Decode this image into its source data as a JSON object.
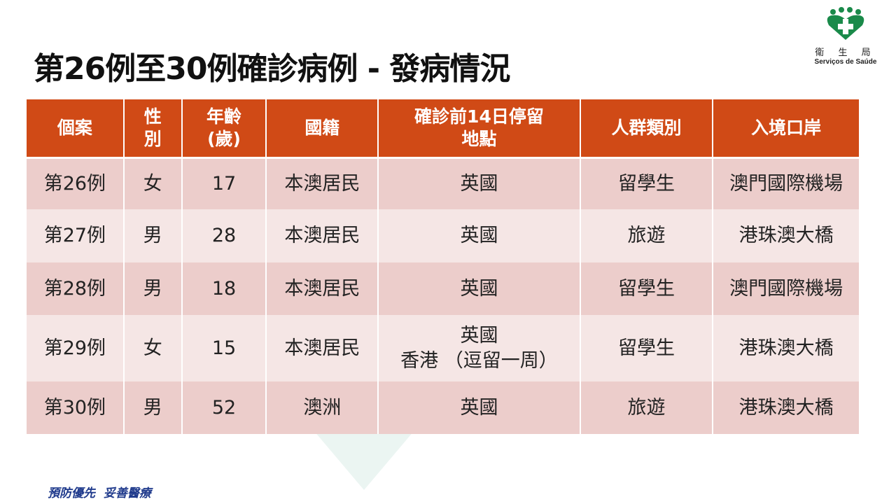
{
  "title": "第26例至30例確診病例 - 發病情況",
  "logo": {
    "name_cn": "衛 生 局",
    "name_pt": "Serviços de Saúde"
  },
  "table": {
    "headers": [
      "個案",
      "性\n別",
      "年齡\n(歲)",
      "國籍",
      "確診前14日停留\n地點",
      "人群類別",
      "入境口岸"
    ],
    "rows": [
      [
        "第26例",
        "女",
        "17",
        "本澳居民",
        "英國",
        "留學生",
        "澳門國際機場"
      ],
      [
        "第27例",
        "男",
        "28",
        "本澳居民",
        "英國",
        "旅遊",
        "港珠澳大橋"
      ],
      [
        "第28例",
        "男",
        "18",
        "本澳居民",
        "英國",
        "留學生",
        "澳門國際機場"
      ],
      [
        "第29例",
        "女",
        "15",
        "本澳居民",
        "英國\n香港 （逗留一周）",
        "留學生",
        "港珠澳大橋"
      ],
      [
        "第30例",
        "男",
        "52",
        "澳洲",
        "英國",
        "旅遊",
        "港珠澳大橋"
      ]
    ]
  },
  "footer": "預防優先  妥善醫療",
  "colors": {
    "header": "#d04a16",
    "row_dark": "#eccdcb",
    "row_light": "#f5e6e5",
    "brand_green": "#1a8a4a"
  }
}
